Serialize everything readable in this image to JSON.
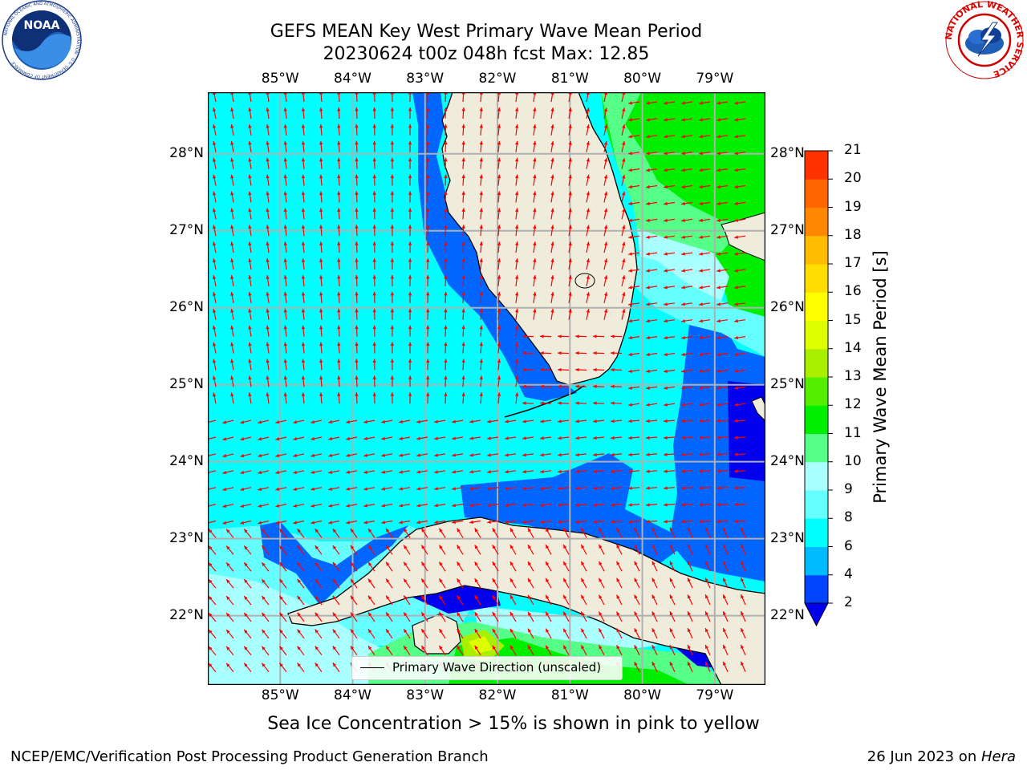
{
  "header": {
    "title_line1": "GEFS MEAN Key West Primary Wave Mean Period",
    "title_line2": "20230624 t00z 048h fcst   Max: 12.85"
  },
  "logos": {
    "left": {
      "name": "noaa-logo",
      "text": "NOAA",
      "ring_text": "NATIONAL OCEANIC AND ATMOSPHERIC ADMINISTRATION · U.S. DEPARTMENT OF COMMERCE"
    },
    "right": {
      "name": "nws-logo",
      "ring_text": "NATIONAL WEATHER SERVICE"
    }
  },
  "map": {
    "lon_labels": [
      "85°W",
      "84°W",
      "83°W",
      "82°W",
      "81°W",
      "80°W",
      "79°W"
    ],
    "lat_labels": [
      "28°N",
      "27°N",
      "26°N",
      "25°N",
      "24°N",
      "23°N",
      "22°N"
    ],
    "lon_range": [
      -86.0,
      -78.3
    ],
    "lat_range": [
      21.1,
      28.8
    ],
    "legend": "Primary Wave Direction (unscaled)",
    "arrow_color": "#ff0000",
    "land_color": "#efecdc",
    "grid": true
  },
  "colorbar": {
    "label": "Primary Wave Mean Period [s]",
    "ticks": [
      "2",
      "4",
      "6",
      "8",
      "9",
      "10",
      "11",
      "12",
      "13",
      "14",
      "15",
      "16",
      "17",
      "18",
      "19",
      "20",
      "21"
    ],
    "colors": [
      "#0044ff",
      "#00bbff",
      "#00ffff",
      "#66ffff",
      "#aaffff",
      "#55ff88",
      "#00ee00",
      "#55ee00",
      "#aaee00",
      "#ddff00",
      "#ffff00",
      "#ffdd00",
      "#ffbb00",
      "#ff8800",
      "#ff6600",
      "#ff3300",
      "#ff0000"
    ],
    "under_color": "#0000ee",
    "extend": "min"
  },
  "caption": "Sea Ice Concentration > 15% is shown in pink to yellow",
  "footer": {
    "left": "NCEP/EMC/Verification Post Processing Product Generation Branch",
    "right_date": "26 Jun 2023 on ",
    "right_host": "Hera"
  }
}
